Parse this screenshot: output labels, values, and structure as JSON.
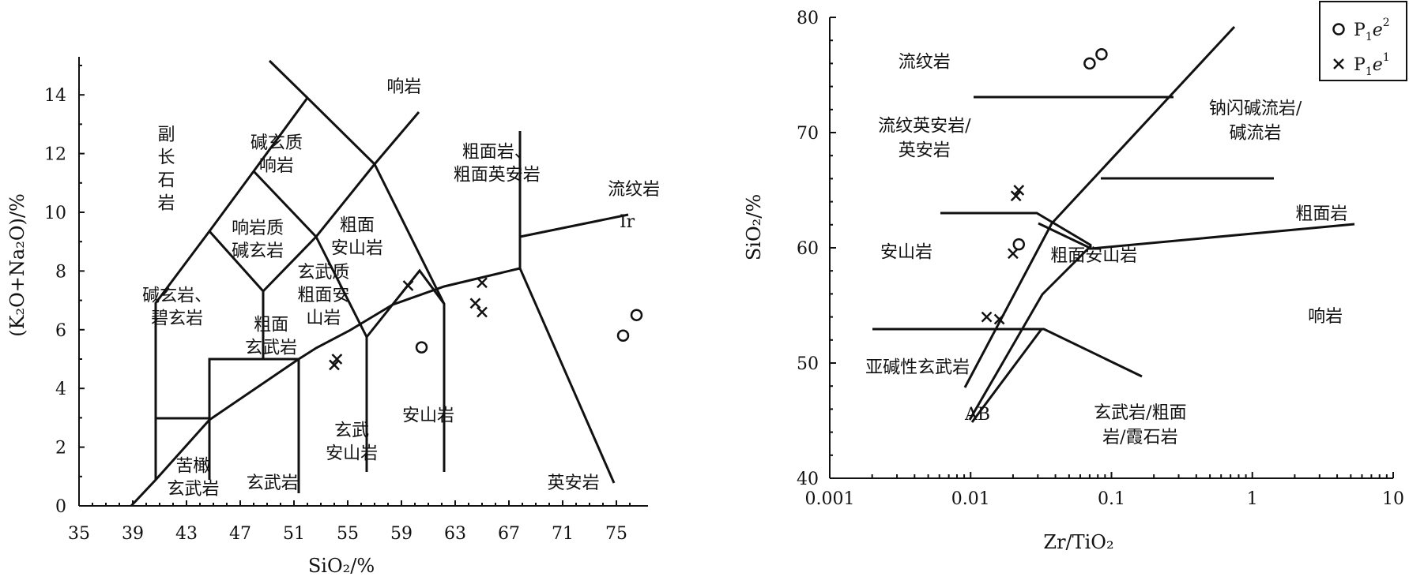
{
  "chart_data": [
    {
      "type": "scatter",
      "title": "",
      "xlabel": "SiO₂/%",
      "ylabel": "(K₂O+Na₂O)/%",
      "xlim": [
        35,
        78
      ],
      "ylim": [
        0,
        15.5
      ],
      "x_ticks": [
        "35",
        "39",
        "43",
        "47",
        "51",
        "55",
        "59",
        "63",
        "67",
        "71",
        "75"
      ],
      "y_ticks": [
        "0",
        "2",
        "4",
        "6",
        "8",
        "10",
        "12",
        "14"
      ],
      "series": [
        {
          "marker": "circle",
          "points": [
            [
              60.5,
              5.4
            ],
            [
              75.5,
              5.8
            ],
            [
              76.5,
              6.5
            ]
          ]
        },
        {
          "marker": "cross",
          "points": [
            [
              54,
              4.8
            ],
            [
              54.2,
              5.0
            ],
            [
              59.5,
              7.5
            ],
            [
              64.5,
              6.9
            ],
            [
              65,
              7.6
            ],
            [
              65,
              6.6
            ]
          ]
        }
      ],
      "regions": [
        {
          "text": [
            "响岩"
          ],
          "x": 59.2,
          "y": 14.3
        },
        {
          "text": [
            "碱玄质",
            "响岩"
          ],
          "x": 49.7,
          "y": 12.0
        },
        {
          "text": [
            "副",
            "长",
            "石",
            "岩"
          ],
          "x": 41.5,
          "y": 11.5
        },
        {
          "text": [
            "响岩质",
            "碱玄岩"
          ],
          "x": 48.3,
          "y": 9.1
        },
        {
          "text": [
            "粗面",
            "安山岩"
          ],
          "x": 55.7,
          "y": 9.2
        },
        {
          "text": [
            "粗面岩、",
            "粗面英安岩"
          ],
          "x": 66.1,
          "y": 11.7
        },
        {
          "text": [
            "流纹岩"
          ],
          "x": 76.3,
          "y": 10.8
        },
        {
          "text": [
            "碱玄岩、",
            "碧玄岩"
          ],
          "x": 42.3,
          "y": 6.8
        },
        {
          "text": [
            "玄武质",
            "粗面安",
            "山岩"
          ],
          "x": 53.2,
          "y": 7.2
        },
        {
          "text": [
            "粗面",
            "玄武岩"
          ],
          "x": 49.3,
          "y": 5.8
        },
        {
          "text": [
            "安山岩"
          ],
          "x": 61,
          "y": 3.1
        },
        {
          "text": [
            "玄武",
            "安山岩"
          ],
          "x": 55.3,
          "y": 2.2
        },
        {
          "text": [
            "玄武岩"
          ],
          "x": 49.4,
          "y": 0.8
        },
        {
          "text": [
            "苦橄",
            "玄武岩"
          ],
          "x": 43.5,
          "y": 1.0
        },
        {
          "text": [
            "英安岩"
          ],
          "x": 71.8,
          "y": 0.8
        },
        {
          "text": [
            "Ir"
          ],
          "x": 75.8,
          "y": 9.7
        }
      ]
    },
    {
      "type": "scatter",
      "title": "",
      "xlabel": "Zr/TiO₂",
      "ylabel": "SiO₂/%",
      "xscale": "log",
      "xlim": [
        0.001,
        10
      ],
      "ylim": [
        40,
        80
      ],
      "x_ticks": [
        "0.001",
        "0.01",
        "0.1",
        "1",
        "10"
      ],
      "y_ticks": [
        "40",
        "50",
        "60",
        "70",
        "80"
      ],
      "legend": {
        "position": "top-right",
        "entries": [
          {
            "marker": "circle",
            "base": "P",
            "sub": "1",
            "italic": "e",
            "sup": "2"
          },
          {
            "marker": "cross",
            "base": "P",
            "sub": "1",
            "italic": "e",
            "sup": "1"
          }
        ]
      },
      "series": [
        {
          "marker": "circle",
          "points": [
            [
              0.07,
              76
            ],
            [
              0.085,
              76.8
            ],
            [
              0.022,
              60.3
            ]
          ]
        },
        {
          "marker": "cross",
          "points": [
            [
              0.021,
              64.5
            ],
            [
              0.022,
              65
            ],
            [
              0.02,
              59.5
            ],
            [
              0.013,
              54
            ],
            [
              0.016,
              53.8
            ]
          ]
        }
      ],
      "regions": [
        {
          "text": [
            "流纹岩"
          ],
          "x": 0.0047,
          "y": 76.2
        },
        {
          "text": [
            "流纹英安岩/",
            "英安岩"
          ],
          "x": 0.0047,
          "y": 69.6
        },
        {
          "text": [
            "钠闪碱流岩/",
            "碱流岩"
          ],
          "x": 1.05,
          "y": 71.1
        },
        {
          "text": [
            "粗面岩"
          ],
          "x": 3.1,
          "y": 63.0
        },
        {
          "text": [
            "安山岩"
          ],
          "x": 0.0035,
          "y": 59.7
        },
        {
          "text": [
            "粗面安山岩"
          ],
          "x": 0.075,
          "y": 59.4
        },
        {
          "text": [
            "响岩"
          ],
          "x": 3.3,
          "y": 54.1
        },
        {
          "text": [
            "亚碱性玄武岩"
          ],
          "x": 0.0042,
          "y": 49.7
        },
        {
          "text": [
            "AB"
          ],
          "x": 0.0112,
          "y": 45.6
        },
        {
          "text": [
            "玄武岩/粗面",
            "岩/霞石岩"
          ],
          "x": 0.16,
          "y": 44.7
        }
      ]
    }
  ]
}
